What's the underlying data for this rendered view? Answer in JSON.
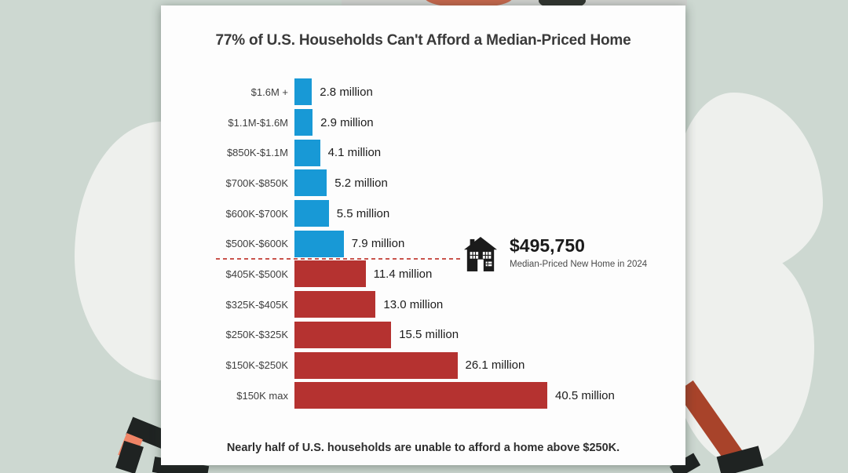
{
  "theme": {
    "background": "#cdd8d1",
    "card": "#fdfdfd",
    "blob": "#eef0ed",
    "ink": "#1f2322",
    "rust": "#a8432a",
    "salmon": "#ef8466",
    "divider": "#c9544c"
  },
  "chart_data": {
    "type": "bar",
    "orientation": "horizontal",
    "title": "77% of U.S. Households Can't Afford a Median-Priced Home",
    "unit": "million households",
    "xlim": [
      0,
      40.5
    ],
    "grid": false,
    "legend": "none",
    "rows": [
      {
        "category": "$1.6M +",
        "value": 2.8,
        "label": "2.8 million",
        "group": "above_median"
      },
      {
        "category": "$1.1M-$1.6M",
        "value": 2.9,
        "label": "2.9 million",
        "group": "above_median"
      },
      {
        "category": "$850K-$1.1M",
        "value": 4.1,
        "label": "4.1 million",
        "group": "above_median"
      },
      {
        "category": "$700K-$850K",
        "value": 5.2,
        "label": "5.2 million",
        "group": "above_median"
      },
      {
        "category": "$600K-$700K",
        "value": 5.5,
        "label": "5.5 million",
        "group": "above_median"
      },
      {
        "category": "$500K-$600K",
        "value": 7.9,
        "label": "7.9 million",
        "group": "above_median"
      },
      {
        "category": "$405K-$500K",
        "value": 11.4,
        "label": "11.4 million",
        "group": "below_median"
      },
      {
        "category": "$325K-$405K",
        "value": 13.0,
        "label": "13.0 million",
        "group": "below_median"
      },
      {
        "category": "$250K-$325K",
        "value": 15.5,
        "label": "15.5 million",
        "group": "below_median"
      },
      {
        "category": "$150K-$250K",
        "value": 26.1,
        "label": "26.1 million",
        "group": "below_median"
      },
      {
        "category": "$150K max",
        "value": 40.5,
        "label": "40.5 million",
        "group": "below_median"
      }
    ],
    "group_colors": {
      "above_median": "#1899d6",
      "below_median": "#b53230"
    },
    "median_annotation": {
      "icon": "house-icon",
      "value": "$495,750",
      "label": "Median-Priced New Home in 2024"
    },
    "footnote": "Nearly half of U.S. households are unable to afford a home above $250K."
  }
}
